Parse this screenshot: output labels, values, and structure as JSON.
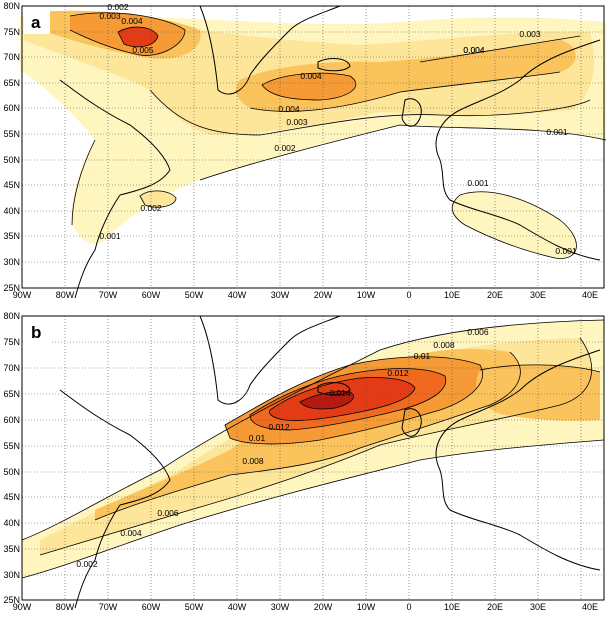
{
  "panels": [
    {
      "letter": "a",
      "lat_ticks": [
        "25N",
        "30N",
        "35N",
        "40N",
        "45N",
        "50N",
        "55N",
        "60N",
        "65N",
        "70N",
        "75N",
        "80N"
      ],
      "lon_ticks": [
        "90W",
        "80W",
        "70W",
        "60W",
        "50W",
        "40W",
        "30W",
        "20W",
        "10W",
        "0",
        "10E",
        "20E",
        "30E",
        "40E"
      ],
      "contour_labels": [
        "0.002",
        "0.003",
        "0.004",
        "0.005",
        "0.004",
        "0.004",
        "0.003",
        "0.004",
        "0.004",
        "0.003",
        "0.002",
        "0.001",
        "0.001",
        "0.002",
        "0.001",
        "0.001"
      ]
    },
    {
      "letter": "b",
      "lat_ticks": [
        "25N",
        "30N",
        "35N",
        "40N",
        "45N",
        "50N",
        "55N",
        "60N",
        "65N",
        "70N",
        "75N",
        "80N"
      ],
      "lon_ticks": [
        "90W",
        "80W",
        "70W",
        "60W",
        "50W",
        "40W",
        "30W",
        "20W",
        "10W",
        "0",
        "10E",
        "20E",
        "30E",
        "40E"
      ],
      "contour_labels": [
        "0.006",
        "0.008",
        "0.01",
        "0.012",
        "0.014",
        "0.012",
        "0.01",
        "0.008",
        "0.006",
        "0.004",
        "0.002"
      ]
    }
  ],
  "colors": {
    "level1": "#fff5bf",
    "level2": "#fde59a",
    "level3": "#fac35c",
    "level4": "#f59a34",
    "level5": "#ef6a1f",
    "level6": "#e23b16",
    "level7": "#b51a10",
    "coast": "#000000",
    "grid": "#555555"
  }
}
